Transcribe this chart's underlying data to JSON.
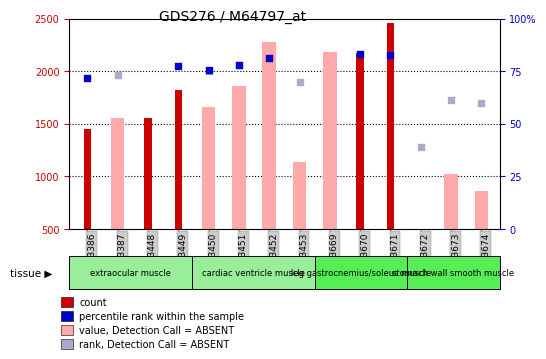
{
  "title": "GDS276 / M64797_at",
  "samples": [
    "GSM3386",
    "GSM3387",
    "GSM3448",
    "GSM3449",
    "GSM3450",
    "GSM3451",
    "GSM3452",
    "GSM3453",
    "GSM3669",
    "GSM3670",
    "GSM3671",
    "GSM3672",
    "GSM3673",
    "GSM3674"
  ],
  "red_bars": [
    1450,
    null,
    1550,
    1820,
    null,
    null,
    null,
    null,
    null,
    2170,
    2460,
    null,
    null,
    null
  ],
  "pink_bars": [
    null,
    1550,
    null,
    null,
    1660,
    1855,
    2280,
    1140,
    2180,
    null,
    null,
    null,
    1020,
    860
  ],
  "blue_squares_left_axis": [
    1930,
    null,
    null,
    2050,
    2010,
    2055,
    2120,
    null,
    null,
    2165,
    2155,
    null,
    null,
    null
  ],
  "light_blue_squares_left_axis": [
    null,
    1960,
    null,
    null,
    2005,
    2060,
    null,
    1900,
    null,
    null,
    null,
    1280,
    1730,
    1700
  ],
  "ylim_left": [
    500,
    2500
  ],
  "ylim_right": [
    0,
    100
  ],
  "yticks_left": [
    500,
    1000,
    1500,
    2000,
    2500
  ],
  "yticks_right": [
    0,
    25,
    50,
    75,
    100
  ],
  "tissue_groups": [
    {
      "label": "extraocular muscle",
      "start": 0,
      "end": 3,
      "color": "#99ee99"
    },
    {
      "label": "cardiac ventricle muscle",
      "start": 4,
      "end": 7,
      "color": "#99ee99"
    },
    {
      "label": "leg gastrocnemius/soleus muscle",
      "start": 8,
      "end": 10,
      "color": "#55ee55"
    },
    {
      "label": "stomach wall smooth muscle",
      "start": 11,
      "end": 13,
      "color": "#55ee55"
    }
  ],
  "colors": {
    "red_bar": "#cc0000",
    "pink_bar": "#ffaaaa",
    "blue_sq": "#0000cc",
    "light_blue_sq": "#aaaacc",
    "tick_label_color_left": "#cc0000",
    "tick_label_color_right": "#0000cc",
    "plot_bg": "#ffffff",
    "xticklabel_bg": "#cccccc"
  },
  "legend_items": [
    {
      "label": "count",
      "color": "#cc0000"
    },
    {
      "label": "percentile rank within the sample",
      "color": "#0000cc"
    },
    {
      "label": "value, Detection Call = ABSENT",
      "color": "#ffaaaa"
    },
    {
      "label": "rank, Detection Call = ABSENT",
      "color": "#aaaacc"
    }
  ]
}
